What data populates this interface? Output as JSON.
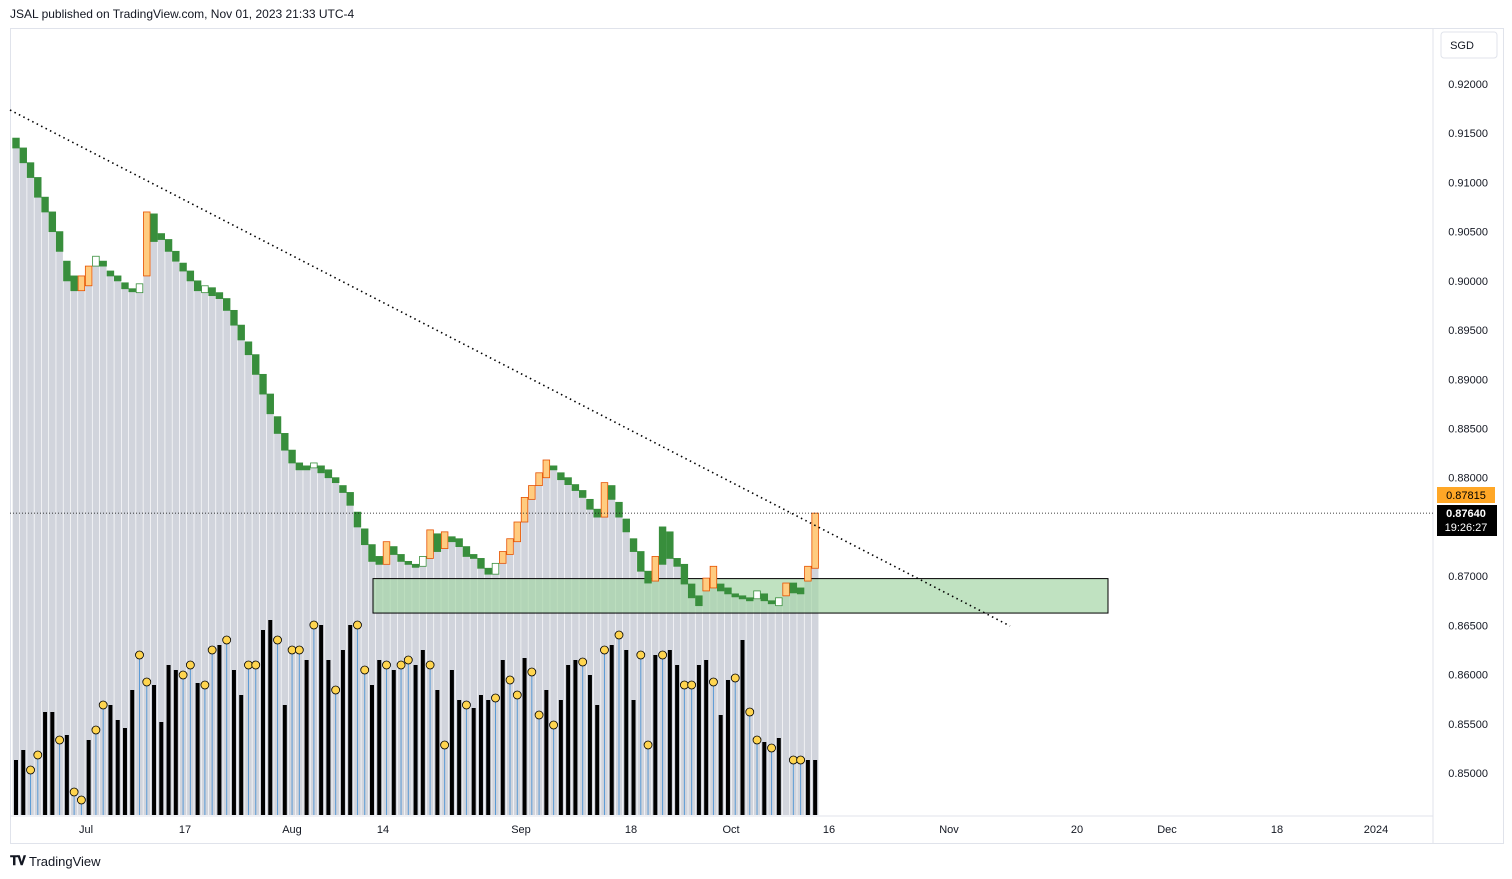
{
  "header": {
    "published": "JSAL published on TradingView.com, Nov 01, 2023 21:33 UTC-4"
  },
  "footer": {
    "brand": "TradingView",
    "logo_icon": "tradingview-logo-icon"
  },
  "currency": "SGD",
  "price_axis": {
    "ticks": [
      "0.92000",
      "0.91500",
      "0.91000",
      "0.90500",
      "0.90000",
      "0.89500",
      "0.89000",
      "0.88500",
      "0.88000",
      "0.87000",
      "0.86500",
      "0.86000",
      "0.85500",
      "0.85000"
    ],
    "last_price": "0.87640",
    "countdown": "19:26:27",
    "orange_label": "0.87815"
  },
  "time_axis": {
    "ticks": [
      "Jul",
      "17",
      "Aug",
      "14",
      "Sep",
      "18",
      "Oct",
      "16",
      "Nov",
      "20",
      "Dec",
      "18",
      "2024"
    ]
  },
  "colors": {
    "bull": "#388e3c",
    "bear_outline": "#388e3c",
    "orange": "#ffcc80",
    "orange_border": "#e65100",
    "gray_col": "#d1d4dc",
    "black_bar": "#000000",
    "blue_stick": "#5b9bd5",
    "dot": "#ffd54f",
    "zone": "#a5d6a7",
    "last_price_bg": "#000000",
    "orange_tag": "#ffa726"
  },
  "chart_data": {
    "type": "candlestick",
    "ylim": [
      0.8465,
      0.9235
    ],
    "trendline": {
      "from": [
        "2023-06-21",
        0.9175
      ],
      "to": [
        "2023-11-05",
        0.865
      ],
      "style": "dotted"
    },
    "zone": {
      "from": "2023-08-14",
      "to": "2023-11-23",
      "top": 0.86975,
      "bottom": 0.86625
    },
    "candles": [
      [
        0.9145,
        0.9135
      ],
      [
        0.9135,
        0.912
      ],
      [
        0.912,
        0.9105
      ],
      [
        0.9105,
        0.9085
      ],
      [
        0.9085,
        0.907
      ],
      [
        0.907,
        0.905
      ],
      [
        0.905,
        0.903
      ],
      [
        0.902,
        0.9
      ],
      [
        0.9005,
        0.899
      ],
      [
        0.899,
        0.9005
      ],
      [
        0.8995,
        0.9015
      ],
      [
        0.9015,
        0.9025
      ],
      [
        0.902,
        0.9015
      ],
      [
        0.901,
        0.9005
      ],
      [
        0.9005,
        0.9
      ],
      [
        0.8998,
        0.8992
      ],
      [
        0.8992,
        0.899
      ],
      [
        0.8988,
        0.8997
      ],
      [
        0.9005,
        0.907
      ],
      [
        0.9068,
        0.904
      ],
      [
        0.9048,
        0.9042
      ],
      [
        0.9042,
        0.903
      ],
      [
        0.903,
        0.902
      ],
      [
        0.9018,
        0.901
      ],
      [
        0.901,
        0.9
      ],
      [
        0.9,
        0.899
      ],
      [
        0.8988,
        0.8995
      ],
      [
        0.8993,
        0.8985
      ],
      [
        0.8988,
        0.8982
      ],
      [
        0.8982,
        0.897
      ],
      [
        0.897,
        0.8955
      ],
      [
        0.8955,
        0.894
      ],
      [
        0.8938,
        0.8925
      ],
      [
        0.8925,
        0.8905
      ],
      [
        0.8905,
        0.8885
      ],
      [
        0.8885,
        0.8865
      ],
      [
        0.8862,
        0.8845
      ],
      [
        0.8845,
        0.8828
      ],
      [
        0.8828,
        0.8815
      ],
      [
        0.8815,
        0.8808
      ],
      [
        0.8812,
        0.8808
      ],
      [
        0.881,
        0.8815
      ],
      [
        0.8812,
        0.8805
      ],
      [
        0.8808,
        0.88
      ],
      [
        0.88,
        0.8795
      ],
      [
        0.8792,
        0.8785
      ],
      [
        0.8785,
        0.8772
      ],
      [
        0.8765,
        0.875
      ],
      [
        0.8748,
        0.8732
      ],
      [
        0.8732,
        0.8715
      ],
      [
        0.872,
        0.8712
      ],
      [
        0.8712,
        0.8735
      ],
      [
        0.873,
        0.8722
      ],
      [
        0.8722,
        0.8715
      ],
      [
        0.8715,
        0.8712
      ],
      [
        0.8712,
        0.871
      ],
      [
        0.871,
        0.872
      ],
      [
        0.8718,
        0.8747
      ],
      [
        0.8743,
        0.8725
      ],
      [
        0.8728,
        0.8745
      ],
      [
        0.874,
        0.8735
      ],
      [
        0.8738,
        0.873
      ],
      [
        0.873,
        0.872
      ],
      [
        0.8722,
        0.8718
      ],
      [
        0.8718,
        0.8708
      ],
      [
        0.8708,
        0.8702
      ],
      [
        0.8702,
        0.8713
      ],
      [
        0.8713,
        0.8725
      ],
      [
        0.8722,
        0.8738
      ],
      [
        0.8735,
        0.8755
      ],
      [
        0.8755,
        0.878
      ],
      [
        0.8778,
        0.8792
      ],
      [
        0.8792,
        0.8805
      ],
      [
        0.88,
        0.8818
      ],
      [
        0.8812,
        0.8808
      ],
      [
        0.8805,
        0.8798
      ],
      [
        0.88,
        0.8793
      ],
      [
        0.8793,
        0.8787
      ],
      [
        0.8787,
        0.878
      ],
      [
        0.8778,
        0.8768
      ],
      [
        0.8768,
        0.876
      ],
      [
        0.876,
        0.8795
      ],
      [
        0.8792,
        0.8778
      ],
      [
        0.8775,
        0.876
      ],
      [
        0.8758,
        0.8745
      ],
      [
        0.8738,
        0.8725
      ],
      [
        0.8725,
        0.8705
      ],
      [
        0.8705,
        0.8693
      ],
      [
        0.8695,
        0.872
      ],
      [
        0.875,
        0.8712
      ],
      [
        0.8745,
        0.8718
      ],
      [
        0.8718,
        0.871
      ],
      [
        0.8712,
        0.8692
      ],
      [
        0.8692,
        0.8678
      ],
      [
        0.868,
        0.867
      ],
      [
        0.8685,
        0.8698
      ],
      [
        0.8688,
        0.871
      ],
      [
        0.8692,
        0.8685
      ],
      [
        0.8688,
        0.8682
      ],
      [
        0.8682,
        0.868
      ],
      [
        0.868,
        0.8678
      ],
      [
        0.8678,
        0.8677
      ],
      [
        0.8677,
        0.8685
      ],
      [
        0.8682,
        0.8675
      ],
      [
        0.8675,
        0.8672
      ],
      [
        0.867,
        0.8678
      ],
      [
        0.868,
        0.8693
      ],
      [
        0.8693,
        0.8683
      ],
      [
        0.8688,
        0.8682
      ],
      [
        0.8695,
        0.871
      ],
      [
        0.8708,
        0.8764
      ]
    ]
  }
}
